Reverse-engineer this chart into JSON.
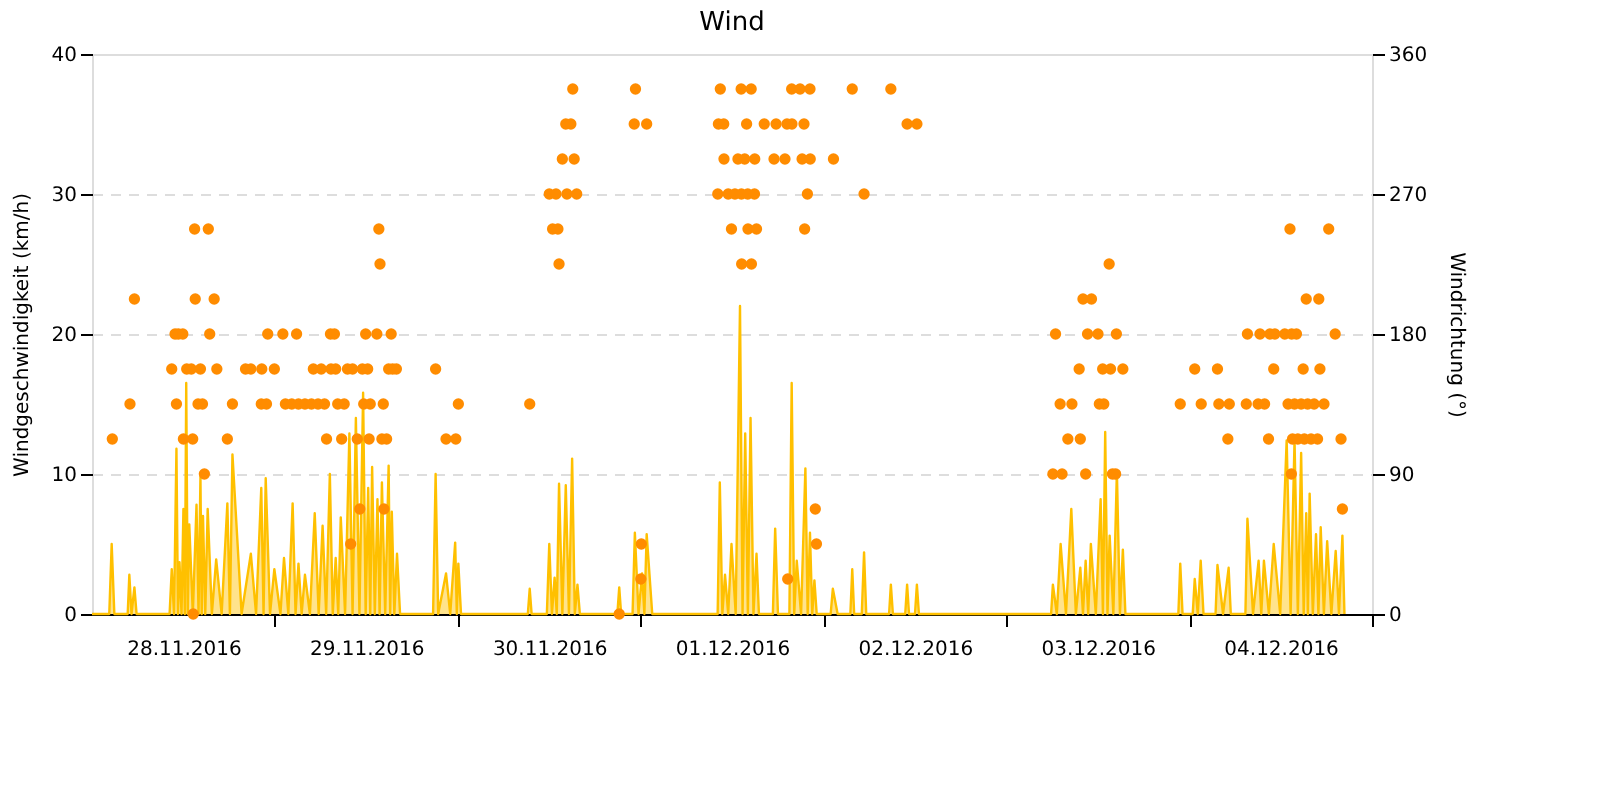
{
  "chart_data": {
    "type": "area",
    "title": "Wind",
    "ylabel": "Windgeschwindigkeit (km/h)",
    "y2label": "Windrichtung (°)",
    "xlim": [
      "2016-11-28T00:00",
      "2016-12-05T00:00"
    ],
    "xticks": [
      {
        "value": "2016-11-28T12:00",
        "label": "28.11.2016"
      },
      {
        "value": "2016-11-29T12:00",
        "label": "29.11.2016"
      },
      {
        "value": "2016-11-30T12:00",
        "label": "30.11.2016"
      },
      {
        "value": "2016-12-01T12:00",
        "label": "01.12.2016"
      },
      {
        "value": "2016-12-02T12:00",
        "label": "02.12.2016"
      },
      {
        "value": "2016-12-03T12:00",
        "label": "03.12.2016"
      },
      {
        "value": "2016-12-04T12:00",
        "label": "04.12.2016"
      },
      {
        "value": "2016-11-29T00:00",
        "label": null
      },
      {
        "value": "2016-11-30T00:00",
        "label": null
      },
      {
        "value": "2016-12-01T00:00",
        "label": null
      },
      {
        "value": "2016-12-02T00:00",
        "label": null
      },
      {
        "value": "2016-12-03T00:00",
        "label": null
      },
      {
        "value": "2016-12-04T00:00",
        "label": null
      },
      {
        "value": "2016-12-05T00:00",
        "label": null
      }
    ],
    "ylim": [
      0,
      40
    ],
    "yticks": [
      0,
      10,
      20,
      30,
      40
    ],
    "y2lim": [
      0,
      360
    ],
    "y2ticks": [
      0,
      90,
      180,
      270,
      360
    ],
    "grid": "y",
    "series": [
      {
        "color": "#ffc000",
        "x": [
          "2016-11-28T00:00",
          "2016-11-28T02:16",
          "2016-11-28T02:35",
          "2016-11-28T02:56",
          "2016-11-28T04:41",
          "2016-11-28T04:54",
          "2016-11-28T05:11",
          "2016-11-28T05:34",
          "2016-11-28T05:51",
          "2016-11-28T10:11",
          "2016-11-28T10:28",
          "2016-11-28T10:46",
          "2016-11-28T11:05",
          "2016-11-28T11:17",
          "2016-11-28T11:29",
          "2016-11-28T11:45",
          "2016-11-28T12:00",
          "2016-11-28T12:11",
          "2016-11-28T12:22",
          "2016-11-28T12:34",
          "2016-11-28T12:46",
          "2016-11-28T13:14",
          "2016-11-28T13:43",
          "2016-11-28T13:59",
          "2016-11-28T14:14",
          "2016-11-28T14:24",
          "2016-11-28T14:34",
          "2016-11-28T14:52",
          "2016-11-28T15:11",
          "2016-11-28T15:44",
          "2016-11-28T16:18",
          "2016-11-28T17:01",
          "2016-11-28T17:46",
          "2016-11-28T18:06",
          "2016-11-28T18:26",
          "2016-11-28T19:38",
          "2016-11-28T20:51",
          "2016-11-28T21:32",
          "2016-11-28T22:13",
          "2016-11-28T22:31",
          "2016-11-28T22:48",
          "2016-11-28T23:22",
          "2016-11-28T23:56",
          "2016-11-29T00:44",
          "2016-11-29T01:12",
          "2016-11-29T01:46",
          "2016-11-29T02:20",
          "2016-11-29T02:43",
          "2016-11-29T03:06",
          "2016-11-29T03:31",
          "2016-11-29T03:57",
          "2016-11-29T04:36",
          "2016-11-29T05:14",
          "2016-11-29T05:45",
          "2016-11-29T06:16",
          "2016-11-29T06:44",
          "2016-11-29T07:13",
          "2016-11-29T07:36",
          "2016-11-29T07:59",
          "2016-11-29T08:19",
          "2016-11-29T08:39",
          "2016-11-29T09:13",
          "2016-11-29T09:47",
          "2016-11-29T10:12",
          "2016-11-29T10:38",
          "2016-11-29T11:06",
          "2016-11-29T11:35",
          "2016-11-29T11:55",
          "2016-11-29T12:15",
          "2016-11-29T12:31",
          "2016-11-29T12:46",
          "2016-11-29T13:07",
          "2016-11-29T13:28",
          "2016-11-29T13:45",
          "2016-11-29T14:03",
          "2016-11-29T14:29",
          "2016-11-29T14:56",
          "2016-11-29T15:08",
          "2016-11-29T15:21",
          "2016-11-29T15:41",
          "2016-11-29T16:02",
          "2016-11-29T16:26",
          "2016-11-29T20:46",
          "2016-11-29T21:06",
          "2016-11-29T21:26",
          "2016-11-29T22:28",
          "2016-11-29T23:01",
          "2016-11-29T23:40",
          "2016-11-29T23:53",
          "2016-11-30T00:05",
          "2016-11-30T00:26",
          "2016-11-30T09:12",
          "2016-11-30T09:27",
          "2016-11-30T09:42",
          "2016-11-30T11:42",
          "2016-11-30T12:01",
          "2016-11-30T12:22",
          "2016-11-30T12:43",
          "2016-11-30T13:00",
          "2016-11-30T13:18",
          "2016-11-30T13:44",
          "2016-11-30T14:11",
          "2016-11-30T14:36",
          "2016-11-30T15:01",
          "2016-11-30T15:22",
          "2016-11-30T15:43",
          "2016-11-30T16:02",
          "2016-11-30T20:57",
          "2016-11-30T21:12",
          "2016-11-30T21:27",
          "2016-11-30T22:57",
          "2016-11-30T23:15",
          "2016-11-30T23:44",
          "2016-12-01T00:12",
          "2016-12-01T00:30",
          "2016-12-01T00:48",
          "2016-12-01T01:32",
          "2016-12-01T10:07",
          "2016-12-01T10:24",
          "2016-12-01T10:44",
          "2016-12-01T11:05",
          "2016-12-01T11:30",
          "2016-12-01T11:56",
          "2016-12-01T12:29",
          "2016-12-01T13:03",
          "2016-12-01T13:23",
          "2016-12-01T13:44",
          "2016-12-01T14:05",
          "2016-12-01T14:26",
          "2016-12-01T14:49",
          "2016-12-01T15:13",
          "2016-12-01T15:32",
          "2016-12-01T17:22",
          "2016-12-01T17:40",
          "2016-12-01T18:02",
          "2016-12-01T19:32",
          "2016-12-01T19:50",
          "2016-12-01T20:10",
          "2016-12-01T20:30",
          "2016-12-01T21:04",
          "2016-12-01T21:38",
          "2016-12-01T21:56",
          "2016-12-01T22:14",
          "2016-12-01T22:32",
          "2016-12-01T22:49",
          "2016-12-01T23:07",
          "2016-12-02T00:57",
          "2016-12-02T01:14",
          "2016-12-02T01:52",
          "2016-12-02T03:32",
          "2016-12-02T03:47",
          "2016-12-02T04:02",
          "2016-12-02T05:02",
          "2016-12-02T05:20",
          "2016-12-02T05:37",
          "2016-12-02T08:37",
          "2016-12-02T08:51",
          "2016-12-02T09:07",
          "2016-12-02T10:44",
          "2016-12-02T10:59",
          "2016-12-02T11:14",
          "2016-12-02T12:01",
          "2016-12-02T12:16",
          "2016-12-02T12:32",
          "2016-12-03T05:53",
          "2016-12-03T06:07",
          "2016-12-03T06:38",
          "2016-12-03T07:08",
          "2016-12-03T07:50",
          "2016-12-03T08:32",
          "2016-12-03T09:08",
          "2016-12-03T09:43",
          "2016-12-03T10:04",
          "2016-12-03T10:25",
          "2016-12-03T10:45",
          "2016-12-03T11:06",
          "2016-12-03T11:45",
          "2016-12-03T12:23",
          "2016-12-03T12:41",
          "2016-12-03T12:59",
          "2016-12-03T13:17",
          "2016-12-03T13:34",
          "2016-12-03T14:03",
          "2016-12-03T14:31",
          "2016-12-03T14:55",
          "2016-12-03T15:18",
          "2016-12-03T15:38",
          "2016-12-03T22:35",
          "2016-12-03T22:50",
          "2016-12-03T23:08",
          "2016-12-04T00:28",
          "2016-12-04T00:44",
          "2016-12-04T01:08",
          "2016-12-04T01:31",
          "2016-12-04T01:53",
          "2016-12-04T03:28",
          "2016-12-04T03:43",
          "2016-12-04T04:27",
          "2016-12-04T05:11",
          "2016-12-04T05:28",
          "2016-12-04T07:23",
          "2016-12-04T07:39",
          "2016-12-04T08:23",
          "2016-12-04T09:07",
          "2016-12-04T09:28",
          "2016-12-04T09:49",
          "2016-12-04T10:28",
          "2016-12-04T11:06",
          "2016-12-04T11:57",
          "2016-12-04T12:48",
          "2016-12-04T13:19",
          "2016-12-04T13:50",
          "2016-12-04T14:16",
          "2016-12-04T14:42",
          "2016-12-04T15:02",
          "2016-12-04T15:22",
          "2016-12-04T15:35",
          "2016-12-04T15:49",
          "2016-12-04T16:14",
          "2016-12-04T16:39",
          "2016-12-04T16:58",
          "2016-12-04T17:16",
          "2016-12-04T17:41",
          "2016-12-04T18:07",
          "2016-12-04T18:40",
          "2016-12-04T19:14",
          "2016-12-04T19:40",
          "2016-12-04T20:07",
          "2016-12-04T20:23"
        ],
        "values": [
          0,
          0,
          5.0,
          0,
          0,
          2.8,
          0,
          1.9,
          0,
          0,
          3.2,
          0,
          11.8,
          0,
          3.7,
          0,
          7.5,
          0,
          16.5,
          0,
          6.4,
          0,
          7.8,
          0,
          9.8,
          0,
          7.0,
          0,
          7.5,
          0,
          3.9,
          0,
          7.9,
          0,
          11.4,
          0,
          4.3,
          0,
          9.0,
          0,
          9.7,
          0,
          3.2,
          0,
          4.0,
          0,
          7.9,
          0,
          3.6,
          0,
          2.8,
          0,
          7.2,
          0,
          6.3,
          0,
          10.0,
          0,
          4.0,
          0,
          6.9,
          0,
          12.9,
          0,
          14.0,
          0,
          15.8,
          0,
          9.0,
          0,
          10.5,
          0,
          8.2,
          0,
          9.4,
          0,
          10.6,
          0,
          7.3,
          0,
          4.3,
          0,
          0,
          10.0,
          0,
          2.9,
          0,
          5.1,
          0,
          3.6,
          0,
          0,
          1.8,
          0,
          0,
          5.0,
          0,
          2.6,
          0,
          9.3,
          0,
          9.2,
          0,
          11.1,
          0,
          2.1,
          0,
          0,
          1.9,
          0,
          0,
          5.8,
          0,
          2.9,
          0,
          5.7,
          0,
          0,
          9.4,
          0,
          2.8,
          0,
          5.0,
          0,
          22.0,
          0,
          12.9,
          0,
          14.0,
          0,
          4.3,
          0,
          0,
          6.1,
          0,
          0,
          16.5,
          0,
          3.8,
          0,
          10.4,
          0,
          5.8,
          0,
          2.4,
          0,
          0,
          1.8,
          0,
          0,
          3.2,
          0,
          0,
          4.4,
          0,
          0,
          2.1,
          0,
          0,
          2.1,
          0,
          0,
          2.1,
          0,
          0,
          2.1,
          0,
          5.0,
          0,
          7.5,
          0,
          3.3,
          0,
          3.8,
          0,
          5.0,
          0,
          8.2,
          0,
          13.0,
          0,
          5.6,
          0,
          10.2,
          0,
          4.6,
          0,
          0,
          3.6,
          0,
          0,
          2.5,
          0,
          3.8,
          0,
          0,
          3.5,
          0,
          3.3,
          0,
          0,
          6.8,
          0,
          3.8,
          0,
          3.8,
          0,
          5.0,
          0,
          12.4,
          0,
          12.4,
          0,
          11.5,
          0,
          7.2,
          0,
          8.6,
          0,
          5.7,
          0,
          6.2,
          0,
          5.2,
          0,
          4.5,
          0,
          5.6,
          0
        ]
      },
      {
        "type": "scatter",
        "axis": "y2",
        "marker": "circle",
        "color": "#ff8c00",
        "x": [
          "2016-11-28T02:40",
          "2016-11-28T04:59",
          "2016-11-28T05:34",
          "2016-11-28T10:28",
          "2016-11-28T10:54",
          "2016-11-28T11:05",
          "2016-11-28T11:20",
          "2016-11-28T11:55",
          "2016-11-28T12:00",
          "2016-11-28T12:26",
          "2016-11-28T13:02",
          "2016-11-28T13:13",
          "2016-11-28T13:17",
          "2016-11-28T13:28",
          "2016-11-28T13:33",
          "2016-11-28T13:55",
          "2016-11-28T14:14",
          "2016-11-28T14:30",
          "2016-11-28T14:45",
          "2016-11-28T15:16",
          "2016-11-28T15:27",
          "2016-11-28T16:02",
          "2016-11-28T16:23",
          "2016-11-28T17:46",
          "2016-11-28T18:26",
          "2016-11-28T20:09",
          "2016-11-28T20:51",
          "2016-11-28T22:13",
          "2016-11-28T22:17",
          "2016-11-28T22:54",
          "2016-11-28T23:04",
          "2016-11-28T23:56",
          "2016-11-29T01:03",
          "2016-11-29T01:23",
          "2016-11-29T02:13",
          "2016-11-29T02:51",
          "2016-11-29T03:06",
          "2016-11-29T03:57",
          "2016-11-29T04:48",
          "2016-11-29T05:03",
          "2016-11-29T05:40",
          "2016-11-29T06:05",
          "2016-11-29T06:31",
          "2016-11-29T06:47",
          "2016-11-29T07:18",
          "2016-11-29T07:22",
          "2016-11-29T07:49",
          "2016-11-29T07:59",
          "2016-11-29T08:15",
          "2016-11-29T08:46",
          "2016-11-29T09:06",
          "2016-11-29T09:32",
          "2016-11-29T09:57",
          "2016-11-29T10:12",
          "2016-11-29T10:49",
          "2016-11-29T11:09",
          "2016-11-29T11:29",
          "2016-11-29T11:40",
          "2016-11-29T11:55",
          "2016-11-29T12:11",
          "2016-11-29T12:22",
          "2016-11-29T12:31",
          "2016-11-29T13:23",
          "2016-11-29T13:39",
          "2016-11-29T13:48",
          "2016-11-29T14:03",
          "2016-11-29T14:14",
          "2016-11-29T14:19",
          "2016-11-29T14:40",
          "2016-11-29T14:56",
          "2016-11-29T15:16",
          "2016-11-29T15:27",
          "2016-11-29T15:57",
          "2016-11-29T21:06",
          "2016-11-29T22:28",
          "2016-11-29T23:45",
          "2016-11-30T00:05",
          "2016-11-30T09:27",
          "2016-11-30T12:01",
          "2016-11-30T12:27",
          "2016-11-30T12:54",
          "2016-11-30T13:09",
          "2016-11-30T13:18",
          "2016-11-30T13:44",
          "2016-11-30T14:11",
          "2016-11-30T14:20",
          "2016-11-30T14:51",
          "2016-11-30T15:06",
          "2016-11-30T15:17",
          "2016-11-30T15:37",
          "2016-11-30T21:12",
          "2016-11-30T23:10",
          "2016-11-30T23:20",
          "2016-12-01T00:02",
          "2016-12-01T00:06",
          "2016-12-01T00:48",
          "2016-12-01T10:08",
          "2016-12-01T10:13",
          "2016-12-01T10:28",
          "2016-12-01T10:55",
          "2016-12-01T10:57",
          "2016-12-01T11:30",
          "2016-12-01T11:56",
          "2016-12-01T12:23",
          "2016-12-01T12:47",
          "2016-12-01T13:12",
          "2016-12-01T13:14",
          "2016-12-01T13:16",
          "2016-12-01T13:40",
          "2016-12-01T13:55",
          "2016-12-01T14:04",
          "2016-12-01T14:06",
          "2016-12-01T14:31",
          "2016-12-01T14:33",
          "2016-12-01T14:57",
          "2016-12-01T14:59",
          "2016-12-01T15:13",
          "2016-12-01T16:14",
          "2016-12-01T17:31",
          "2016-12-01T17:47",
          "2016-12-01T18:57",
          "2016-12-01T19:13",
          "2016-12-01T19:19",
          "2016-12-01T19:50",
          "2016-12-01T19:52",
          "2016-12-01T20:56",
          "2016-12-01T21:12",
          "2016-12-01T21:27",
          "2016-12-01T21:32",
          "2016-12-01T21:54",
          "2016-12-01T22:14",
          "2016-12-01T22:16",
          "2016-12-01T22:56",
          "2016-12-01T23:05",
          "2016-12-02T01:19",
          "2016-12-02T03:47",
          "2016-12-02T05:20",
          "2016-12-02T08:51",
          "2016-12-02T10:59",
          "2016-12-02T12:16",
          "2016-12-03T06:07",
          "2016-12-03T06:28",
          "2016-12-03T07:04",
          "2016-12-03T07:19",
          "2016-12-03T08:05",
          "2016-12-03T08:37",
          "2016-12-03T09:34",
          "2016-12-03T09:43",
          "2016-12-03T10:04",
          "2016-12-03T10:25",
          "2016-12-03T10:40",
          "2016-12-03T11:11",
          "2016-12-03T12:02",
          "2016-12-03T12:13",
          "2016-12-03T12:39",
          "2016-12-03T12:48",
          "2016-12-03T13:30",
          "2016-12-03T13:41",
          "2016-12-03T13:56",
          "2016-12-03T14:21",
          "2016-12-03T14:27",
          "2016-12-03T15:18",
          "2016-12-03T22:50",
          "2016-12-04T00:44",
          "2016-12-04T01:35",
          "2016-12-04T03:43",
          "2016-12-04T03:54",
          "2016-12-04T05:05",
          "2016-12-04T05:16",
          "2016-12-04T07:30",
          "2016-12-04T07:39",
          "2016-12-04T09:03",
          "2016-12-04T09:18",
          "2016-12-04T09:54",
          "2016-12-04T10:25",
          "2016-12-04T10:36",
          "2016-12-04T11:06",
          "2016-12-04T11:15",
          "2016-12-04T12:33",
          "2016-12-04T12:59",
          "2016-12-04T13:14",
          "2016-12-04T13:25",
          "2016-12-04T13:27",
          "2016-12-04T13:34",
          "2016-12-04T13:50",
          "2016-12-04T14:05",
          "2016-12-04T14:16",
          "2016-12-04T14:42",
          "2016-12-04T14:58",
          "2016-12-04T15:07",
          "2016-12-04T15:22",
          "2016-12-04T15:33",
          "2016-12-04T16:00",
          "2016-12-04T16:24",
          "2016-12-04T16:51",
          "2016-12-04T17:01",
          "2016-12-04T17:10",
          "2016-12-04T17:42",
          "2016-12-04T18:19",
          "2016-12-04T19:10",
          "2016-12-04T19:56",
          "2016-12-04T20:07"
        ],
        "values": [
          112.5,
          135,
          202.5,
          157.5,
          180,
          135,
          180,
          180,
          112.5,
          157.5,
          157.5,
          112.5,
          0,
          247.5,
          202.5,
          135,
          157.5,
          135,
          90,
          247.5,
          180,
          202.5,
          157.5,
          112.5,
          135,
          157.5,
          157.5,
          135,
          157.5,
          135,
          180,
          157.5,
          180,
          135,
          135,
          180,
          135,
          135,
          135,
          157.5,
          135,
          157.5,
          135,
          112.5,
          180,
          157.5,
          180,
          157.5,
          135,
          112.5,
          135,
          157.5,
          45,
          157.5,
          112.5,
          67.5,
          157.5,
          135,
          180,
          157.5,
          112.5,
          135,
          180,
          247.5,
          225,
          112.5,
          135,
          67.5,
          112.5,
          157.5,
          180,
          157.5,
          157.5,
          157.5,
          112.5,
          112.5,
          135,
          135,
          270,
          247.5,
          270,
          247.5,
          225,
          292.5,
          315,
          270,
          315,
          337.5,
          292.5,
          270,
          0,
          315,
          337.5,
          22.5,
          45,
          315,
          270,
          315,
          337.5,
          315,
          292.5,
          270,
          247.5,
          270,
          292.5,
          337.5,
          270,
          225,
          292.5,
          315,
          270,
          247.5,
          337.5,
          225,
          270,
          292.5,
          247.5,
          315,
          292.5,
          315,
          292.5,
          315,
          22.5,
          337.5,
          315,
          337.5,
          292.5,
          315,
          247.5,
          270,
          337.5,
          292.5,
          67.5,
          45,
          292.5,
          337.5,
          270,
          337.5,
          315,
          315,
          90,
          180,
          135,
          90,
          112.5,
          135,
          157.5,
          112.5,
          202.5,
          90,
          180,
          202.5,
          180,
          135,
          157.5,
          135,
          225,
          157.5,
          90,
          90,
          180,
          157.5,
          135,
          157.5,
          135,
          157.5,
          135,
          112.5,
          135,
          135,
          180,
          135,
          180,
          135,
          112.5,
          180,
          157.5,
          180,
          180,
          135,
          247.5,
          90,
          180,
          112.5,
          135,
          180,
          112.5,
          135,
          157.5,
          112.5,
          202.5,
          135,
          112.5,
          135,
          112.5,
          202.5,
          157.5,
          135,
          247.5,
          180,
          112.5,
          67.5
        ]
      }
    ]
  }
}
